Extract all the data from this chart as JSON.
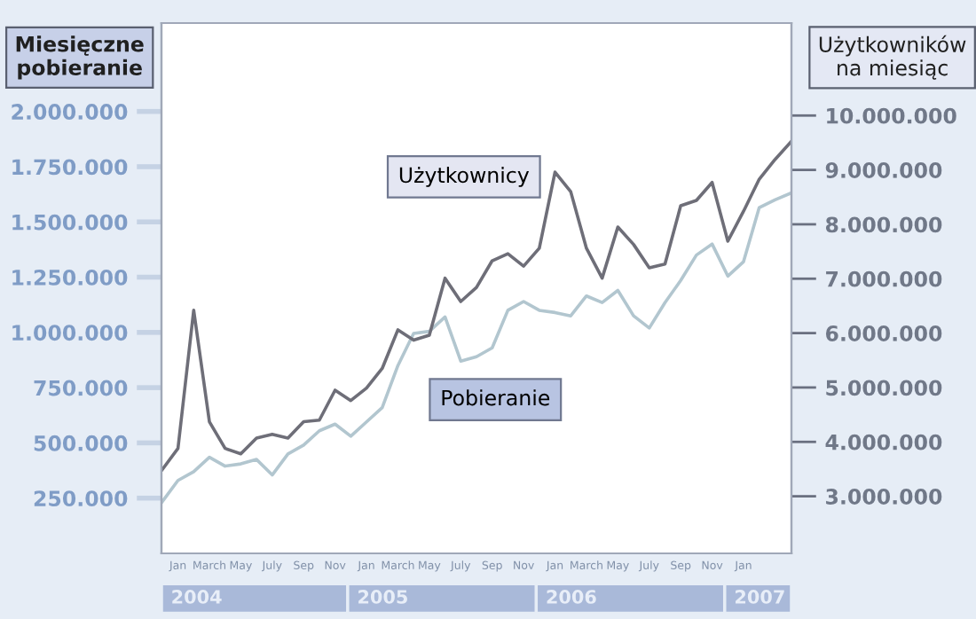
{
  "chart_data": {
    "type": "line",
    "ylabel": "Miesięczne\npobieranie",
    "y2label": "Użytkowników\nna miesiąc",
    "categories": [
      null,
      "Jan",
      null,
      "March",
      null,
      "May",
      null,
      "July",
      null,
      "Sep",
      null,
      "Nov",
      null,
      "Jan",
      null,
      "March",
      null,
      "May",
      null,
      "July",
      null,
      "Sep",
      null,
      "Nov",
      null,
      "Jan",
      null,
      "March",
      null,
      "May",
      null,
      "July",
      null,
      "Sep",
      null,
      "Nov",
      null,
      "Jan",
      null,
      null,
      null
    ],
    "annotations": [
      "2004",
      "2005",
      "2006",
      "2007"
    ],
    "series": [
      {
        "name": "Użytkownicy",
        "color": "#6e6e78",
        "axis": "y2",
        "values": [
          3490000,
          3880000,
          6420000,
          4370000,
          3880000,
          3780000,
          4070000,
          4140000,
          4070000,
          4370000,
          4400000,
          4950000,
          4760000,
          4990000,
          5350000,
          6060000,
          5870000,
          5960000,
          7010000,
          6580000,
          6840000,
          7330000,
          7460000,
          7230000,
          7560000,
          8960000,
          8600000,
          7560000,
          7010000,
          7950000,
          7630000,
          7200000,
          7270000,
          8340000,
          8440000,
          8770000,
          7690000,
          8240000,
          8830000,
          9190000,
          9510000
        ]
      },
      {
        "name": "Pobieranie",
        "color": "#b2c6cf",
        "axis": "y",
        "values": [
          234000,
          330000,
          370000,
          435000,
          395000,
          405000,
          425000,
          355000,
          450000,
          490000,
          555000,
          585000,
          530000,
          595000,
          660000,
          850000,
          995000,
          1005000,
          1070000,
          870000,
          890000,
          930000,
          1100000,
          1140000,
          1100000,
          1090000,
          1075000,
          1165000,
          1135000,
          1190000,
          1075000,
          1020000,
          1135000,
          1235000,
          1350000,
          1400000,
          1255000,
          1320000,
          1565000,
          1600000,
          1630000
        ]
      }
    ],
    "ylim": [
      0,
      2400000
    ],
    "yticks": [
      {
        "value": 250000,
        "label": "250.000"
      },
      {
        "value": 500000,
        "label": "500.000"
      },
      {
        "value": 750000,
        "label": "750.000"
      },
      {
        "value": 1000000,
        "label": "1.000.000"
      },
      {
        "value": 1250000,
        "label": "1.250.000"
      },
      {
        "value": 1500000,
        "label": "1.500.000"
      },
      {
        "value": 1750000,
        "label": "1.750.000"
      },
      {
        "value": 2000000,
        "label": "2.000.000"
      }
    ],
    "y2lim": [
      1950000,
      11700000
    ],
    "y2ticks": [
      {
        "value": 3000000,
        "label": "3.000.000"
      },
      {
        "value": 4000000,
        "label": "4.000.000"
      },
      {
        "value": 5000000,
        "label": "5.000.000"
      },
      {
        "value": 6000000,
        "label": "6.000.000"
      },
      {
        "value": 7000000,
        "label": "7.000.000"
      },
      {
        "value": 8000000,
        "label": "8.000.000"
      },
      {
        "value": 9000000,
        "label": "9.000.000"
      },
      {
        "value": 10000000,
        "label": "10.000.000"
      }
    ],
    "grid": false,
    "legend": false,
    "marker": "none",
    "line_style": "solid"
  }
}
